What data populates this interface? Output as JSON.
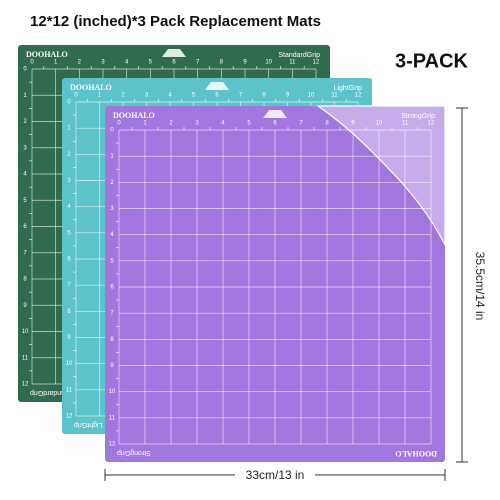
{
  "title": "12*12 (inched)*3 Pack Replacement Mats",
  "badge": "3-PACK",
  "mats": [
    {
      "brand": "DOOHALO",
      "grip": "StandardGrip"
    },
    {
      "brand": "DOOHALO",
      "grip": "LightGrip"
    },
    {
      "brand": "DOOHALO",
      "grip": "StrongGrip"
    }
  ],
  "ruler_labels": [
    0,
    1,
    2,
    3,
    4,
    5,
    6,
    7,
    8,
    9,
    10,
    11,
    12
  ],
  "height_label": "35.5cm/14 in",
  "width_label": "33cm/13 in"
}
